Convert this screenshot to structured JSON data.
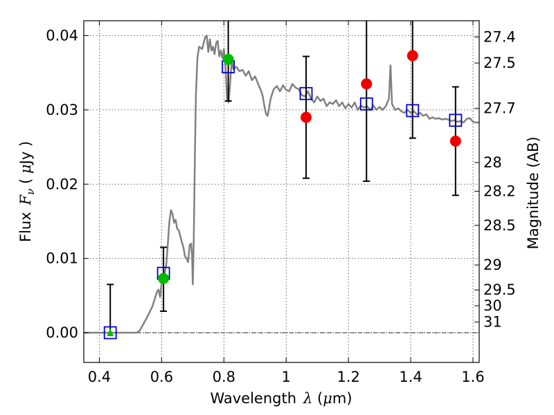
{
  "chart_data": {
    "type": "scatter",
    "xlabel_text": "Wavelength",
    "xlabel_lambda": "λ",
    "xlabel_unit_open": " (",
    "xlabel_mu": "μ",
    "xlabel_unit_rest": "m)",
    "ylabel_text": "Flux",
    "ylabel_symbol": "F",
    "ylabel_sub": "ν",
    "ylabel_unit_open": " ( ",
    "ylabel_mu": "μ",
    "ylabel_unit_rest": "Jy )",
    "y2label": "Magnitude (AB)",
    "xlim": [
      0.35,
      1.62
    ],
    "ylim": [
      -0.004,
      0.042
    ],
    "grid": true,
    "x_ticks": [
      {
        "v": 0.4,
        "label": "0.4"
      },
      {
        "v": 0.6,
        "label": "0.6"
      },
      {
        "v": 0.8,
        "label": "0.8"
      },
      {
        "v": 1.0,
        "label": "1"
      },
      {
        "v": 1.2,
        "label": "1.2"
      },
      {
        "v": 1.4,
        "label": "1.4"
      },
      {
        "v": 1.6,
        "label": "1.6"
      }
    ],
    "y_ticks": [
      {
        "v": 0.0,
        "label": "0.00"
      },
      {
        "v": 0.01,
        "label": "0.01"
      },
      {
        "v": 0.02,
        "label": "0.02"
      },
      {
        "v": 0.03,
        "label": "0.03"
      },
      {
        "v": 0.04,
        "label": "0.04"
      }
    ],
    "mag_ticks": [
      {
        "v": 27.4,
        "label": "27.4"
      },
      {
        "v": 27.5,
        "label": "27.5"
      },
      {
        "v": 27.7,
        "label": "27.7"
      },
      {
        "v": 28.0,
        "label": "28"
      },
      {
        "v": 28.2,
        "label": "28.2"
      },
      {
        "v": 28.5,
        "label": "28.5"
      },
      {
        "v": 29.0,
        "label": "29"
      },
      {
        "v": 29.5,
        "label": "29.5"
      },
      {
        "v": 30.0,
        "label": "30"
      },
      {
        "v": 31.0,
        "label": "31"
      }
    ],
    "sed_model": [
      [
        0.35,
        0.0
      ],
      [
        0.52,
        0.0
      ],
      [
        0.53,
        0.0003
      ],
      [
        0.55,
        0.0018
      ],
      [
        0.57,
        0.0035
      ],
      [
        0.585,
        0.0055
      ],
      [
        0.59,
        0.0058
      ],
      [
        0.595,
        0.0048
      ],
      [
        0.6,
        0.0068
      ],
      [
        0.605,
        0.0078
      ],
      [
        0.61,
        0.008
      ],
      [
        0.615,
        0.0092
      ],
      [
        0.62,
        0.012
      ],
      [
        0.625,
        0.015
      ],
      [
        0.63,
        0.0165
      ],
      [
        0.635,
        0.016
      ],
      [
        0.64,
        0.0148
      ],
      [
        0.645,
        0.0152
      ],
      [
        0.65,
        0.014
      ],
      [
        0.655,
        0.0138
      ],
      [
        0.66,
        0.013
      ],
      [
        0.665,
        0.0122
      ],
      [
        0.67,
        0.0115
      ],
      [
        0.675,
        0.0103
      ],
      [
        0.68,
        0.01
      ],
      [
        0.685,
        0.0095
      ],
      [
        0.69,
        0.0118
      ],
      [
        0.695,
        0.012
      ],
      [
        0.698,
        0.01
      ],
      [
        0.7,
        0.0065
      ],
      [
        0.703,
        0.012
      ],
      [
        0.707,
        0.024
      ],
      [
        0.71,
        0.032
      ],
      [
        0.715,
        0.037
      ],
      [
        0.72,
        0.0385
      ],
      [
        0.73,
        0.0382
      ],
      [
        0.74,
        0.0398
      ],
      [
        0.745,
        0.04
      ],
      [
        0.75,
        0.0378
      ],
      [
        0.755,
        0.0395
      ],
      [
        0.76,
        0.038
      ],
      [
        0.765,
        0.0385
      ],
      [
        0.77,
        0.0375
      ],
      [
        0.775,
        0.039
      ],
      [
        0.78,
        0.0393
      ],
      [
        0.785,
        0.0372
      ],
      [
        0.79,
        0.038
      ],
      [
        0.795,
        0.037
      ],
      [
        0.8,
        0.0382
      ],
      [
        0.805,
        0.036
      ],
      [
        0.81,
        0.0315
      ],
      [
        0.815,
        0.031
      ],
      [
        0.82,
        0.0335
      ],
      [
        0.825,
        0.0368
      ],
      [
        0.83,
        0.0355
      ],
      [
        0.84,
        0.0358
      ],
      [
        0.85,
        0.0352
      ],
      [
        0.86,
        0.0354
      ],
      [
        0.87,
        0.0346
      ],
      [
        0.88,
        0.0352
      ],
      [
        0.89,
        0.034
      ],
      [
        0.9,
        0.0345
      ],
      [
        0.91,
        0.0335
      ],
      [
        0.92,
        0.0325
      ],
      [
        0.925,
        0.0318
      ],
      [
        0.93,
        0.0305
      ],
      [
        0.935,
        0.0295
      ],
      [
        0.94,
        0.0292
      ],
      [
        0.945,
        0.0302
      ],
      [
        0.95,
        0.0315
      ],
      [
        0.96,
        0.0328
      ],
      [
        0.97,
        0.0332
      ],
      [
        0.98,
        0.0325
      ],
      [
        0.99,
        0.0333
      ],
      [
        1.0,
        0.0327
      ],
      [
        1.01,
        0.0325
      ],
      [
        1.02,
        0.0335
      ],
      [
        1.03,
        0.033
      ],
      [
        1.04,
        0.0328
      ],
      [
        1.05,
        0.032
      ],
      [
        1.06,
        0.0318
      ],
      [
        1.07,
        0.0325
      ],
      [
        1.08,
        0.0315
      ],
      [
        1.09,
        0.031
      ],
      [
        1.1,
        0.0318
      ],
      [
        1.11,
        0.0312
      ],
      [
        1.12,
        0.0315
      ],
      [
        1.13,
        0.0305
      ],
      [
        1.14,
        0.031
      ],
      [
        1.15,
        0.0308
      ],
      [
        1.16,
        0.0313
      ],
      [
        1.17,
        0.0305
      ],
      [
        1.18,
        0.031
      ],
      [
        1.19,
        0.0302
      ],
      [
        1.2,
        0.0308
      ],
      [
        1.21,
        0.0303
      ],
      [
        1.22,
        0.031
      ],
      [
        1.23,
        0.03
      ],
      [
        1.24,
        0.0306
      ],
      [
        1.25,
        0.0303
      ],
      [
        1.26,
        0.0305
      ],
      [
        1.27,
        0.03
      ],
      [
        1.28,
        0.0306
      ],
      [
        1.29,
        0.03
      ],
      [
        1.3,
        0.0304
      ],
      [
        1.31,
        0.03
      ],
      [
        1.32,
        0.0305
      ],
      [
        1.33,
        0.0315
      ],
      [
        1.335,
        0.036
      ],
      [
        1.34,
        0.0308
      ],
      [
        1.35,
        0.03
      ],
      [
        1.36,
        0.0302
      ],
      [
        1.37,
        0.0298
      ],
      [
        1.38,
        0.0296
      ],
      [
        1.39,
        0.03
      ],
      [
        1.4,
        0.0296
      ],
      [
        1.41,
        0.0298
      ],
      [
        1.42,
        0.0294
      ],
      [
        1.43,
        0.0296
      ],
      [
        1.44,
        0.0292
      ],
      [
        1.45,
        0.0294
      ],
      [
        1.46,
        0.0288
      ],
      [
        1.47,
        0.029
      ],
      [
        1.48,
        0.0288
      ],
      [
        1.49,
        0.0289
      ],
      [
        1.5,
        0.0287
      ],
      [
        1.51,
        0.0288
      ],
      [
        1.52,
        0.0287
      ],
      [
        1.53,
        0.0285
      ],
      [
        1.54,
        0.0286
      ],
      [
        1.55,
        0.0284
      ],
      [
        1.56,
        0.0285
      ],
      [
        1.57,
        0.0283
      ],
      [
        1.58,
        0.0288
      ],
      [
        1.59,
        0.0289
      ],
      [
        1.6,
        0.0284
      ],
      [
        1.61,
        0.0283
      ],
      [
        1.62,
        0.0283
      ]
    ],
    "model_photometry": [
      {
        "x": 0.435,
        "y": 0.0
      },
      {
        "x": 0.606,
        "y": 0.008
      },
      {
        "x": 0.814,
        "y": 0.0358
      },
      {
        "x": 1.064,
        "y": 0.0322
      },
      {
        "x": 1.258,
        "y": 0.0308
      },
      {
        "x": 1.406,
        "y": 0.0299
      },
      {
        "x": 1.544,
        "y": 0.0286
      }
    ],
    "observed_detections": [
      {
        "x": 0.606,
        "y": 0.0073,
        "err_low": 0.0029,
        "err_high": 0.0115
      },
      {
        "x": 0.814,
        "y": 0.0368,
        "err_low": 0.0312,
        "err_high": 0.042
      }
    ],
    "observed_upper_limit": [
      {
        "x": 0.435,
        "y": 0.0,
        "err_low": 0.0,
        "err_high": 0.0065
      }
    ],
    "observed_ir": [
      {
        "x": 1.064,
        "y": 0.029,
        "err_low": 0.0208,
        "err_high": 0.0372
      },
      {
        "x": 1.258,
        "y": 0.0335,
        "err_low": 0.0204,
        "err_high": 0.042
      },
      {
        "x": 1.406,
        "y": 0.0373,
        "err_low": 0.0262,
        "err_high": 0.042
      },
      {
        "x": 1.544,
        "y": 0.0258,
        "err_low": 0.0185,
        "err_high": 0.0331
      }
    ],
    "colors": {
      "model": "#808080",
      "model_photometry": "#0000cc",
      "detection": "#00bb00",
      "ir": "#ee0000",
      "errorbar": "#000000"
    }
  }
}
